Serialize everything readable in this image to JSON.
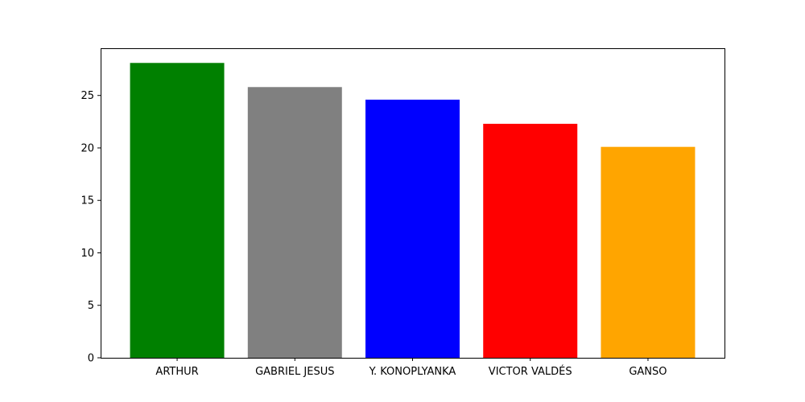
{
  "chart_data": {
    "type": "bar",
    "categories": [
      "ARTHUR",
      "GABRIEL JESUS",
      "Y. KONOPLYANKA",
      "VICTOR VALDÉS",
      "GANSO"
    ],
    "values": [
      28.1,
      25.8,
      24.6,
      22.3,
      20.1
    ],
    "colors": [
      "#008000",
      "#808080",
      "#0000ff",
      "#ff0000",
      "#ffa500"
    ],
    "title": "",
    "xlabel": "",
    "ylabel": "",
    "ylim": [
      0,
      29.5
    ],
    "yticks": [
      0,
      5,
      10,
      15,
      20,
      25
    ],
    "ytick_labels": [
      "0",
      "5",
      "10",
      "15",
      "20",
      "25"
    ],
    "grid": false,
    "legend": null
  }
}
